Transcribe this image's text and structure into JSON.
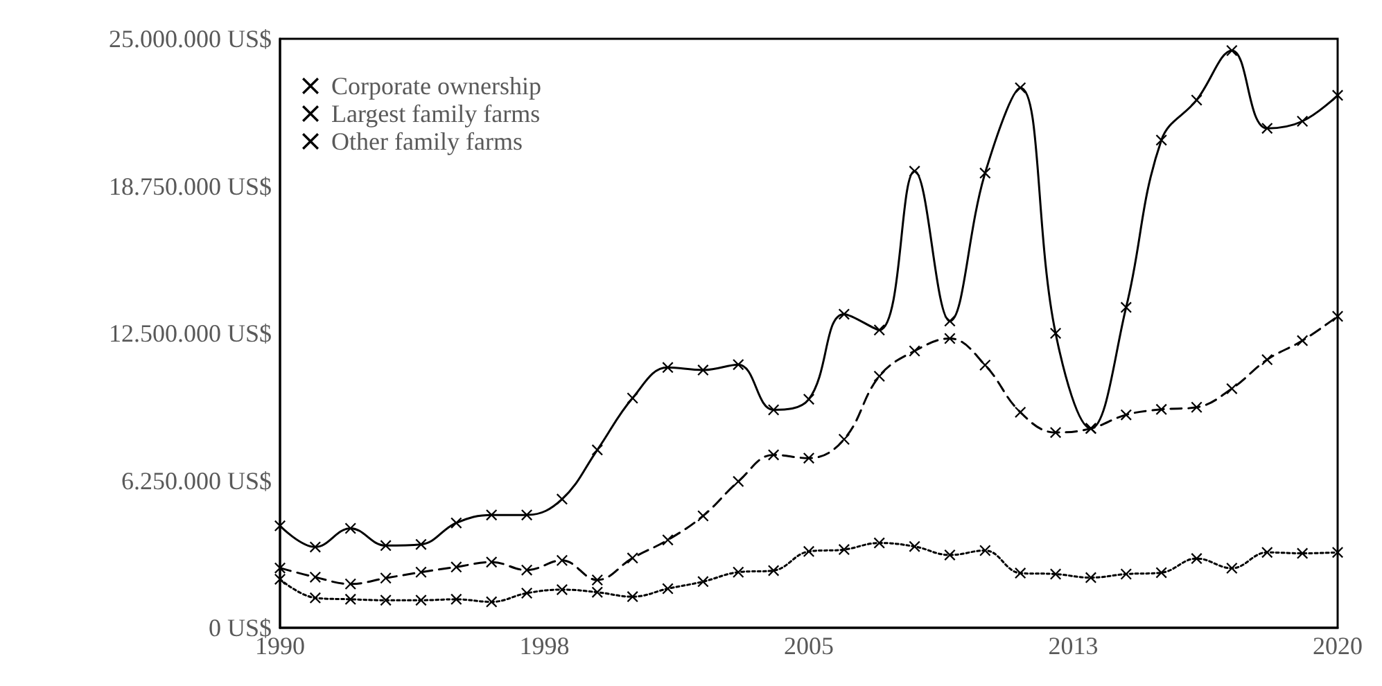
{
  "chart_data": {
    "type": "line",
    "x": [
      1990,
      1991,
      1992,
      1993,
      1994,
      1995,
      1996,
      1997,
      1998,
      1999,
      2000,
      2001,
      2002,
      2003,
      2004,
      2005,
      2006,
      2007,
      2008,
      2009,
      2010,
      2011,
      2012,
      2013,
      2014,
      2015,
      2016,
      2017,
      2018,
      2019,
      2020
    ],
    "series": [
      {
        "name": "Corporate ownership",
        "color": "#000000",
        "line_style": "solid",
        "values": [
          4330000,
          3430000,
          4220000,
          3490000,
          3540000,
          4450000,
          4790000,
          4790000,
          5460000,
          7550000,
          9750000,
          11050000,
          10940000,
          11170000,
          9250000,
          9700000,
          13310000,
          12640000,
          19380000,
          13020000,
          19300000,
          22920000,
          12500000,
          8460000,
          13600000,
          20700000,
          22400000,
          24500000,
          21200000,
          21500000,
          22600000
        ]
      },
      {
        "name": "Largest family farms",
        "color": "#000000",
        "line_style": "dashed",
        "values": [
          2540000,
          2150000,
          1860000,
          2110000,
          2360000,
          2580000,
          2790000,
          2450000,
          2860000,
          2030000,
          2960000,
          3730000,
          4750000,
          6210000,
          7340000,
          7200000,
          8000000,
          10680000,
          11750000,
          12280000,
          11150000,
          9150000,
          8290000,
          8460000,
          9040000,
          9270000,
          9360000,
          10150000,
          11380000,
          12190000,
          13220000
        ]
      },
      {
        "name": "Other family farms",
        "color": "#000000",
        "line_style": "dotted",
        "values": [
          2060000,
          1270000,
          1210000,
          1170000,
          1170000,
          1210000,
          1100000,
          1470000,
          1620000,
          1510000,
          1320000,
          1660000,
          1960000,
          2360000,
          2430000,
          3240000,
          3320000,
          3600000,
          3450000,
          3090000,
          3280000,
          2320000,
          2280000,
          2130000,
          2280000,
          2340000,
          2940000,
          2530000,
          3200000,
          3160000,
          3200000
        ]
      }
    ],
    "xlim": [
      1990,
      2020
    ],
    "xticks": [
      1990,
      {
        "value": 1997.5,
        "label": "1998"
      },
      2005,
      {
        "value": 2012.5,
        "label": "2013"
      },
      2020
    ],
    "ylim": [
      0,
      25000000
    ],
    "yticks": [
      {
        "value": 0,
        "label": "0 US$"
      },
      {
        "value": 6250000,
        "label": "6.250.000 US$"
      },
      {
        "value": 12500000,
        "label": "12.500.000 US$"
      },
      {
        "value": 18750000,
        "label": "18.750.000 US$"
      },
      {
        "value": 25000000,
        "label": "25.000.000 US$"
      }
    ],
    "grid": false,
    "legend": "top left",
    "marker": "cross"
  }
}
